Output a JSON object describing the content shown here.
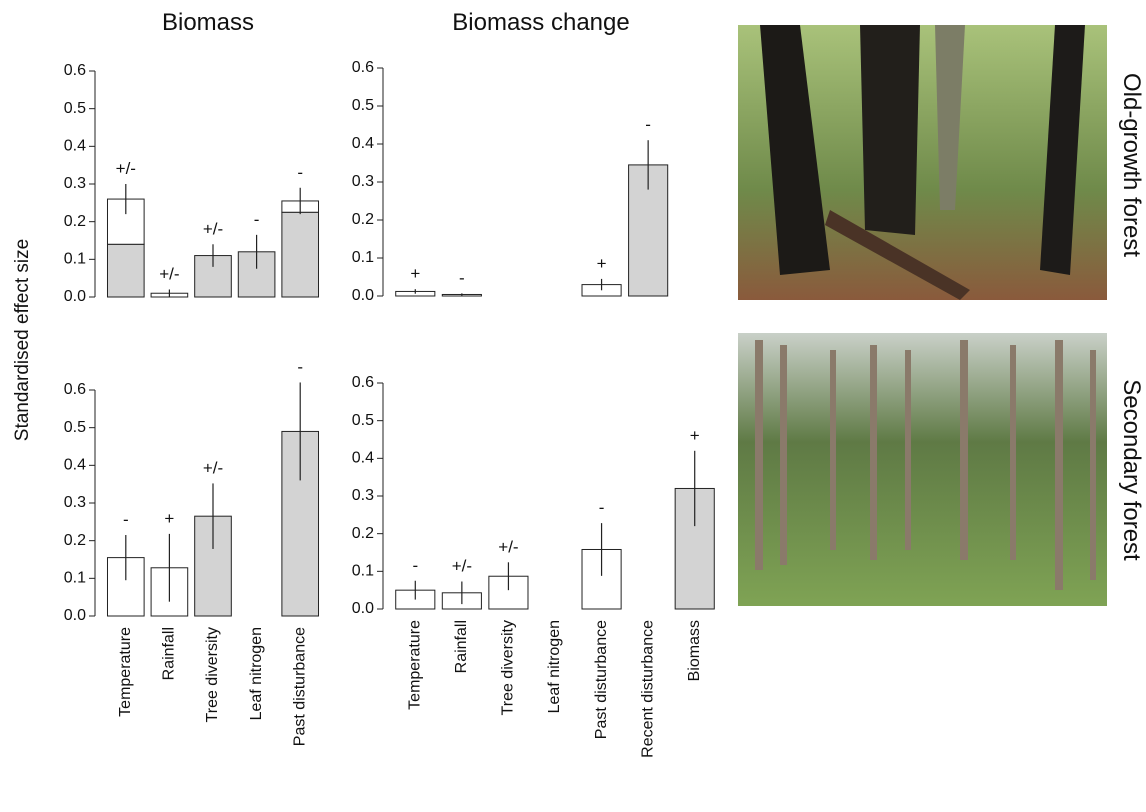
{
  "chart_data": [
    {
      "type": "bar",
      "title": "Biomass",
      "ylabel": "Standardised effect size",
      "row_label": "Old-growth forest",
      "series": [
        {
          "color": "#d3d3d3",
          "values": [
            0.14,
            0,
            0.11,
            0.12,
            0.225
          ]
        },
        {
          "color": "#ffffff",
          "values": [
            0.12,
            0.01,
            0,
            0,
            0.03
          ]
        }
      ],
      "errors": [
        0.04,
        0.01,
        0.03,
        0.045,
        0.035
      ],
      "annotations": [
        "+/-",
        "+/-",
        "+/-",
        "-",
        "-"
      ],
      "ylim": [
        0,
        0.6
      ],
      "yticks": [
        {
          "value": 0,
          "label": "0.0"
        },
        {
          "value": 0.1,
          "label": "0.1"
        },
        {
          "value": 0.2,
          "label": "0.2"
        },
        {
          "value": 0.3,
          "label": "0.3"
        },
        {
          "value": 0.4,
          "label": "0.4"
        },
        {
          "value": 0.5,
          "label": "0.5"
        },
        {
          "value": 0.6,
          "label": "0.6"
        }
      ]
    },
    {
      "type": "bar",
      "title": "Biomass change",
      "series": [
        {
          "color": "#d3d3d3",
          "values": [
            0,
            0,
            0,
            0,
            0,
            0.345,
            0
          ]
        },
        {
          "color": "#ffffff",
          "values": [
            0.012,
            0.004,
            0,
            0,
            0.03,
            0,
            0
          ]
        }
      ],
      "errors": [
        0.006,
        0.003,
        0,
        0,
        0.015,
        0.065,
        0
      ],
      "annotations": [
        "+",
        "-",
        null,
        null,
        "+",
        "-",
        null
      ],
      "ylim": [
        0,
        0.6
      ],
      "yticks": [
        {
          "value": 0,
          "label": "0.0"
        },
        {
          "value": 0.1,
          "label": "0.1"
        },
        {
          "value": 0.2,
          "label": "0.2"
        },
        {
          "value": 0.3,
          "label": "0.3"
        },
        {
          "value": 0.4,
          "label": "0.4"
        },
        {
          "value": 0.5,
          "label": "0.5"
        },
        {
          "value": 0.6,
          "label": "0.6"
        }
      ]
    },
    {
      "type": "bar",
      "row_label": "Secondary forest",
      "categories": [
        "Temperature",
        "Rainfall",
        "Tree diversity",
        "Leaf nitrogen",
        "Past disturbance"
      ],
      "series": [
        {
          "color": "#d3d3d3",
          "values": [
            0,
            0,
            0.265,
            0,
            0.49
          ]
        },
        {
          "color": "#ffffff",
          "values": [
            0.155,
            0.128,
            0,
            0,
            0
          ]
        }
      ],
      "errors": [
        0.06,
        0.09,
        0.087,
        0,
        0.13
      ],
      "annotations": [
        "-",
        "+",
        "+/-",
        null,
        "-"
      ],
      "ylim": [
        0,
        0.6
      ],
      "yticks": [
        {
          "value": 0,
          "label": "0.0"
        },
        {
          "value": 0.1,
          "label": "0.1"
        },
        {
          "value": 0.2,
          "label": "0.2"
        },
        {
          "value": 0.3,
          "label": "0.3"
        },
        {
          "value": 0.4,
          "label": "0.4"
        },
        {
          "value": 0.5,
          "label": "0.5"
        },
        {
          "value": 0.6,
          "label": "0.6"
        }
      ]
    },
    {
      "type": "bar",
      "categories": [
        "Temperature",
        "Rainfall",
        "Tree diversity",
        "Leaf nitrogen",
        "Past disturbance",
        "Recent disturbance",
        "Biomass"
      ],
      "series": [
        {
          "color": "#d3d3d3",
          "values": [
            0,
            0,
            0,
            0,
            0,
            0,
            0.32
          ]
        },
        {
          "color": "#ffffff",
          "values": [
            0.05,
            0.043,
            0.087,
            0,
            0.158,
            0,
            0
          ]
        }
      ],
      "errors": [
        0.025,
        0.03,
        0.037,
        0,
        0.07,
        0,
        0.1
      ],
      "annotations": [
        "-",
        "+/-",
        "+/-",
        null,
        "-",
        null,
        "+"
      ],
      "ylim": [
        0,
        0.6
      ],
      "yticks": [
        {
          "value": 0,
          "label": "0.0"
        },
        {
          "value": 0.1,
          "label": "0.1"
        },
        {
          "value": 0.2,
          "label": "0.2"
        },
        {
          "value": 0.3,
          "label": "0.3"
        },
        {
          "value": 0.4,
          "label": "0.4"
        },
        {
          "value": 0.5,
          "label": "0.5"
        },
        {
          "value": 0.6,
          "label": "0.6"
        }
      ]
    }
  ]
}
